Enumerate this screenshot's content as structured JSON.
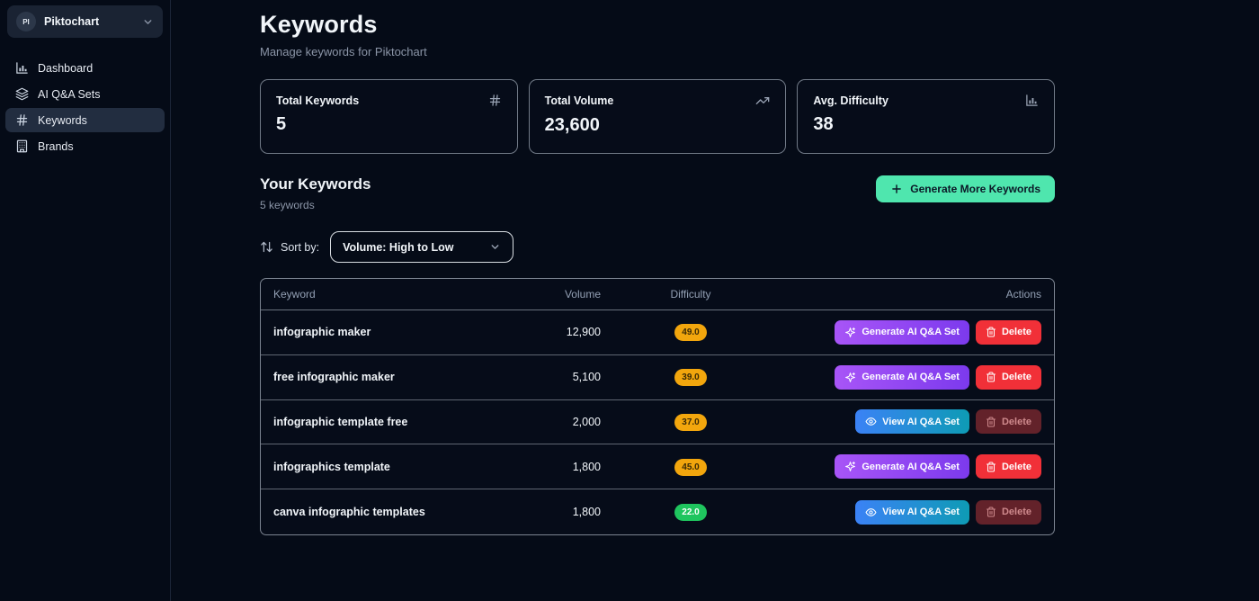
{
  "sidebar": {
    "brand": {
      "initials": "PI",
      "name": "Piktochart"
    },
    "items": [
      {
        "id": "dashboard",
        "label": "Dashboard",
        "icon": "bar-chart",
        "active": false
      },
      {
        "id": "ai-qa-sets",
        "label": "AI Q&A Sets",
        "icon": "layers",
        "active": false
      },
      {
        "id": "keywords",
        "label": "Keywords",
        "icon": "hash",
        "active": true
      },
      {
        "id": "brands",
        "label": "Brands",
        "icon": "building",
        "active": false
      }
    ]
  },
  "header": {
    "title": "Keywords",
    "subtitle": "Manage keywords for Piktochart"
  },
  "stats": [
    {
      "label": "Total Keywords",
      "value": "5",
      "icon": "hash"
    },
    {
      "label": "Total Volume",
      "value": "23,600",
      "icon": "trending-up"
    },
    {
      "label": "Avg. Difficulty",
      "value": "38",
      "icon": "bar-chart"
    }
  ],
  "keywords_section": {
    "title": "Your Keywords",
    "count": "5 keywords",
    "generate_button": "Generate More Keywords"
  },
  "sort": {
    "label": "Sort by:",
    "selected": "Volume: High to Low"
  },
  "table": {
    "columns": [
      "Keyword",
      "Volume",
      "Difficulty",
      "Actions"
    ],
    "rows": [
      {
        "keyword": "infographic maker",
        "volume": "12,900",
        "difficulty": "49.0",
        "difficulty_level": "amber",
        "primary_action": {
          "label": "Generate AI Q&A Set",
          "type": "generate"
        },
        "delete_action": {
          "label": "Delete",
          "disabled": false
        }
      },
      {
        "keyword": "free infographic maker",
        "volume": "5,100",
        "difficulty": "39.0",
        "difficulty_level": "amber",
        "primary_action": {
          "label": "Generate AI Q&A Set",
          "type": "generate"
        },
        "delete_action": {
          "label": "Delete",
          "disabled": false
        }
      },
      {
        "keyword": "infographic template free",
        "volume": "2,000",
        "difficulty": "37.0",
        "difficulty_level": "amber",
        "primary_action": {
          "label": "View AI Q&A Set",
          "type": "view"
        },
        "delete_action": {
          "label": "Delete",
          "disabled": true
        }
      },
      {
        "keyword": "infographics template",
        "volume": "1,800",
        "difficulty": "45.0",
        "difficulty_level": "amber",
        "primary_action": {
          "label": "Generate AI Q&A Set",
          "type": "generate"
        },
        "delete_action": {
          "label": "Delete",
          "disabled": false
        }
      },
      {
        "keyword": "canva infographic templates",
        "volume": "1,800",
        "difficulty": "22.0",
        "difficulty_level": "green",
        "primary_action": {
          "label": "View AI Q&A Set",
          "type": "view"
        },
        "delete_action": {
          "label": "Delete",
          "disabled": true
        }
      }
    ]
  },
  "colors": {
    "background": "#050b17",
    "accent_green": "#4fe6ae",
    "badge_amber": "#f2a60d",
    "badge_green": "#1fc55e",
    "generate_gradient": [
      "#a855f7",
      "#7c3aed"
    ],
    "view_gradient": [
      "#3b82f6",
      "#0e9bb5"
    ],
    "delete_red": "#f13038"
  }
}
